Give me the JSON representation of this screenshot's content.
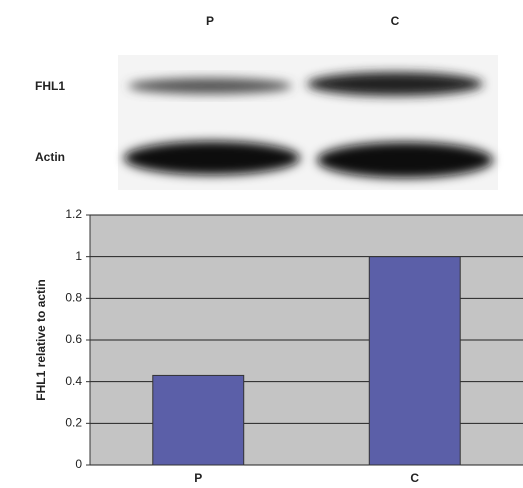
{
  "blot": {
    "lanes": [
      "P",
      "C"
    ],
    "rows": [
      "FHL1",
      "Actin"
    ]
  },
  "chart_data": {
    "type": "bar",
    "ylabel": "FHL1 relative to actin",
    "categories": [
      "P",
      "C"
    ],
    "values": [
      0.43,
      1.0
    ],
    "color": "#5b5fa8",
    "ylim": [
      0,
      1.2
    ],
    "yticks": [
      0,
      0.2,
      0.4,
      0.6,
      0.8,
      1,
      1.2
    ],
    "grid": true
  }
}
